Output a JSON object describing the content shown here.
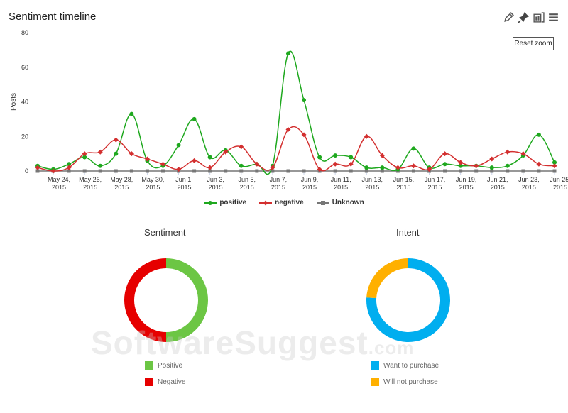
{
  "title": "Sentiment timeline",
  "toolbar": {
    "icons": [
      "pencil-icon",
      "pin-icon",
      "export-icon",
      "menu-icon"
    ]
  },
  "reset_zoom_label": "Reset zoom",
  "watermark": "SoftwareSuggest.com",
  "chart_data": [
    {
      "type": "line",
      "title": "Sentiment timeline",
      "ylabel": "Posts",
      "ylim": [
        0,
        80
      ],
      "yticks": [
        "0",
        "20",
        "40",
        "60",
        "80"
      ],
      "xtick_labels": [
        [
          "May 24,",
          "2015"
        ],
        [
          "May 26,",
          "2015"
        ],
        [
          "May 28,",
          "2015"
        ],
        [
          "May 30,",
          "2015"
        ],
        [
          "Jun 1,",
          "2015"
        ],
        [
          "Jun 3,",
          "2015"
        ],
        [
          "Jun 5,",
          "2015"
        ],
        [
          "Jun 7,",
          "2015"
        ],
        [
          "Jun 9,",
          "2015"
        ],
        [
          "Jun 11,",
          "2015"
        ],
        [
          "Jun 13,",
          "2015"
        ],
        [
          "Jun 15,",
          "2015"
        ],
        [
          "Jun 17,",
          "2015"
        ],
        [
          "Jun 19,",
          "2015"
        ],
        [
          "Jun 21,",
          "2015"
        ],
        [
          "Jun 23,",
          "2015"
        ],
        [
          "Jun 25,",
          "2015"
        ]
      ],
      "x": [
        "2015-05-23",
        "2015-05-24",
        "2015-05-25",
        "2015-05-26",
        "2015-05-27",
        "2015-05-28",
        "2015-05-29",
        "2015-05-30",
        "2015-05-31",
        "2015-06-01",
        "2015-06-02",
        "2015-06-03",
        "2015-06-04",
        "2015-06-05",
        "2015-06-06",
        "2015-06-07",
        "2015-06-08",
        "2015-06-09",
        "2015-06-10",
        "2015-06-11",
        "2015-06-12",
        "2015-06-13",
        "2015-06-14",
        "2015-06-15",
        "2015-06-16",
        "2015-06-17",
        "2015-06-18",
        "2015-06-19",
        "2015-06-20",
        "2015-06-21",
        "2015-06-22",
        "2015-06-23",
        "2015-06-24",
        "2015-06-25"
      ],
      "series": [
        {
          "name": "positive",
          "color": "#1ea81e",
          "marker": "circle",
          "values": [
            3,
            1,
            4,
            8,
            3,
            10,
            33,
            6,
            3,
            15,
            30,
            8,
            12,
            3,
            4,
            3,
            68,
            41,
            8,
            9,
            8,
            2,
            2,
            1,
            13,
            2,
            4,
            3,
            3,
            2,
            3,
            9,
            21,
            5
          ]
        },
        {
          "name": "negative",
          "color": "#d32f2f",
          "marker": "diamond",
          "values": [
            2,
            0,
            2,
            10,
            11,
            18,
            10,
            7,
            4,
            1,
            6,
            2,
            11,
            14,
            4,
            2,
            24,
            21,
            1,
            4,
            4,
            20,
            9,
            2,
            3,
            1,
            10,
            5,
            3,
            7,
            11,
            10,
            4,
            3
          ]
        },
        {
          "name": "Unknown",
          "color": "#777777",
          "marker": "square",
          "values": [
            0,
            0,
            0,
            0,
            0,
            0,
            0,
            0,
            0,
            0,
            0,
            0,
            0,
            0,
            0,
            0,
            0,
            0,
            0,
            0,
            0,
            0,
            0,
            0,
            0,
            0,
            0,
            0,
            0,
            0,
            0,
            0,
            0,
            0
          ]
        }
      ],
      "legend_position": "bottom",
      "grid": false
    },
    {
      "type": "pie",
      "title": "Sentiment",
      "labels": [
        "Positive",
        "Negative"
      ],
      "values": [
        50,
        50
      ],
      "colors": [
        "#6cc644",
        "#e60000"
      ]
    },
    {
      "type": "pie",
      "title": "Intent",
      "labels": [
        "Want to purchase",
        "Will not purchase"
      ],
      "values": [
        76,
        24
      ],
      "colors": [
        "#00aeef",
        "#ffb000"
      ]
    }
  ]
}
